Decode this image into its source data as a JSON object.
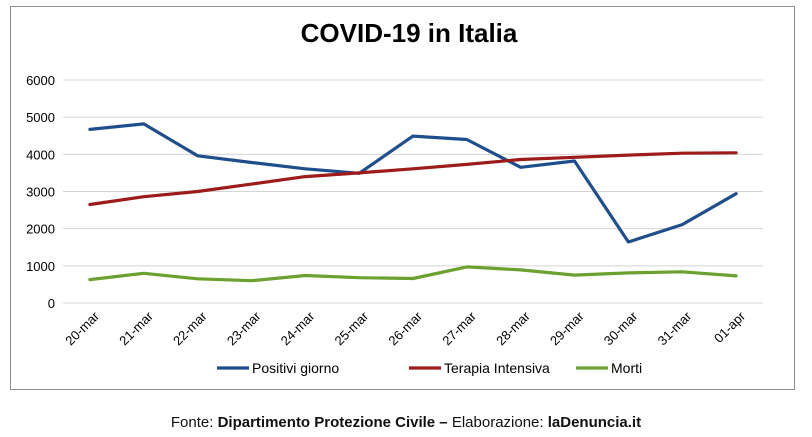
{
  "chart_data": {
    "type": "line",
    "title": "COVID-19 in Italia",
    "categories": [
      "20-mar",
      "21-mar",
      "22-mar",
      "23-mar",
      "24-mar",
      "25-mar",
      "26-mar",
      "27-mar",
      "28-mar",
      "29-mar",
      "30-mar",
      "31-mar",
      "01-apr"
    ],
    "ylim": [
      0,
      6000
    ],
    "yticks": [
      "0",
      "1000",
      "2000",
      "3000",
      "4000",
      "5000",
      "6000"
    ],
    "grid": true,
    "legend": "bottom",
    "series": [
      {
        "name": "Positivi giorno",
        "color": "#1f4e8c",
        "values": [
          4670,
          4820,
          3960,
          3780,
          3610,
          3490,
          4490,
          4400,
          3650,
          3820,
          1640,
          2110,
          2940
        ]
      },
      {
        "name": "Terapia Intensiva",
        "color": "#9e1b1b",
        "values": [
          2650,
          2860,
          3000,
          3200,
          3400,
          3500,
          3610,
          3730,
          3860,
          3920,
          3980,
          4030,
          4040
        ]
      },
      {
        "name": "Morti",
        "color": "#6aa12f",
        "values": [
          630,
          800,
          650,
          600,
          740,
          680,
          660,
          970,
          890,
          750,
          810,
          840,
          730
        ]
      }
    ]
  },
  "footer": {
    "prefix": "Fonte: ",
    "source": "Dipartimento Protezione Civile",
    "separator": " – ",
    "label": "Elaborazione: ",
    "site": "laDenuncia.it"
  }
}
